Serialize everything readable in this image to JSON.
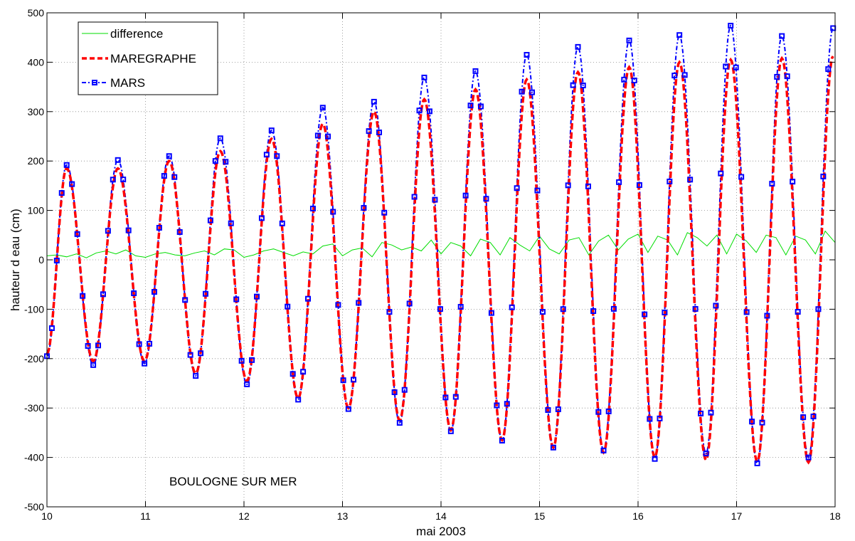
{
  "chart_data": {
    "type": "line",
    "title": "",
    "xlabel": "mai 2003",
    "ylabel": "hauteur d eau (cm)",
    "xlim": [
      10,
      18
    ],
    "ylim": [
      -500,
      500
    ],
    "x_ticks": [
      10,
      11,
      12,
      13,
      14,
      15,
      16,
      17,
      18
    ],
    "y_ticks": [
      -500,
      -400,
      -300,
      -200,
      -100,
      0,
      100,
      200,
      300,
      400,
      500
    ],
    "grid": true,
    "legend_position": "top-left",
    "annotation": "BOULOGNE SUR MER",
    "period_days": 0.5175,
    "series": [
      {
        "name": "difference",
        "color": "#00dd00",
        "style": "solid",
        "x": [
          10.0,
          10.1,
          10.2,
          10.3,
          10.4,
          10.5,
          10.6,
          10.7,
          10.8,
          10.9,
          11.0,
          11.1,
          11.2,
          11.3,
          11.4,
          11.5,
          11.6,
          11.7,
          11.8,
          11.9,
          12.0,
          12.1,
          12.2,
          12.3,
          12.4,
          12.5,
          12.6,
          12.7,
          12.8,
          12.9,
          13.0,
          13.1,
          13.2,
          13.3,
          13.4,
          13.5,
          13.6,
          13.7,
          13.8,
          13.9,
          14.0,
          14.1,
          14.2,
          14.3,
          14.4,
          14.5,
          14.6,
          14.7,
          14.8,
          14.9,
          15.0,
          15.1,
          15.2,
          15.3,
          15.4,
          15.5,
          15.6,
          15.7,
          15.8,
          15.9,
          16.0,
          16.1,
          16.2,
          16.3,
          16.4,
          16.5,
          16.6,
          16.7,
          16.8,
          16.9,
          17.0,
          17.1,
          17.2,
          17.3,
          17.4,
          17.5,
          17.6,
          17.7,
          17.8,
          17.9,
          18.0
        ],
        "values": [
          8,
          10,
          6,
          12,
          4,
          14,
          18,
          12,
          20,
          8,
          5,
          12,
          15,
          10,
          8,
          14,
          18,
          10,
          22,
          20,
          5,
          10,
          18,
          22,
          15,
          8,
          16,
          12,
          28,
          32,
          8,
          20,
          24,
          6,
          35,
          30,
          20,
          26,
          18,
          40,
          12,
          35,
          28,
          8,
          42,
          35,
          10,
          45,
          30,
          18,
          48,
          22,
          12,
          40,
          45,
          10,
          38,
          50,
          20,
          42,
          52,
          15,
          48,
          40,
          10,
          55,
          45,
          28,
          50,
          12,
          52,
          38,
          15,
          50,
          45,
          10,
          48,
          40,
          12,
          58,
          35
        ]
      },
      {
        "name": "MAREGRAPHE",
        "color": "#ff0000",
        "style": "dashed",
        "x": [
          10.0,
          10.2,
          10.47,
          10.72,
          10.99,
          11.24,
          11.51,
          11.76,
          12.03,
          12.28,
          12.55,
          12.8,
          13.06,
          13.32,
          13.58,
          13.83,
          14.1,
          14.35,
          14.62,
          14.87,
          15.14,
          15.39,
          15.65,
          15.91,
          16.17,
          16.42,
          16.69,
          16.94,
          17.21,
          17.46,
          17.73,
          17.98
        ],
        "values": [
          -190,
          185,
          -205,
          185,
          -205,
          200,
          -230,
          220,
          -245,
          245,
          -280,
          275,
          -300,
          300,
          -325,
          325,
          -345,
          345,
          -365,
          365,
          -380,
          380,
          -390,
          390,
          -400,
          400,
          -405,
          405,
          -408,
          408,
          -410,
          412
        ]
      },
      {
        "name": "MARS",
        "color": "#0000ff",
        "style": "dash-dot",
        "marker": "square",
        "x": [
          10.0,
          10.2,
          10.47,
          10.72,
          10.99,
          11.24,
          11.51,
          11.76,
          12.03,
          12.28,
          12.55,
          12.8,
          13.06,
          13.32,
          13.58,
          13.83,
          14.1,
          14.35,
          14.62,
          14.87,
          15.14,
          15.39,
          15.65,
          15.91,
          16.17,
          16.42,
          16.69,
          16.94,
          17.21,
          17.46,
          17.73,
          17.98
        ],
        "values": [
          -195,
          192,
          -213,
          202,
          -210,
          210,
          -235,
          246,
          -252,
          262,
          -283,
          308,
          -302,
          320,
          -330,
          369,
          -347,
          382,
          -366,
          415,
          -380,
          431,
          -386,
          444,
          -403,
          455,
          -392,
          474,
          -412,
          453,
          -400,
          469
        ]
      }
    ]
  }
}
